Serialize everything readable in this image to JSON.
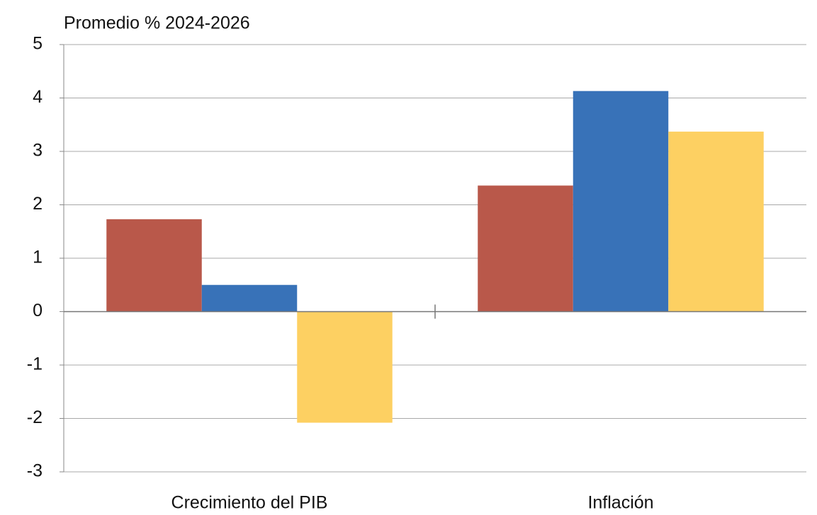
{
  "chart_data": {
    "type": "bar",
    "title": "Promedio % 2024-2026",
    "categories": [
      "Crecimiento del PIB",
      "Inflación"
    ],
    "series": [
      {
        "color": "#b9584a",
        "values": [
          1.73,
          2.36
        ]
      },
      {
        "color": "#3872b8",
        "values": [
          0.5,
          4.13
        ]
      },
      {
        "color": "#fdd062",
        "values": [
          -2.08,
          3.37
        ]
      }
    ],
    "ylim": [
      -3,
      5
    ],
    "yticks": [
      -3,
      -2,
      -1,
      0,
      1,
      2,
      3,
      4,
      5
    ],
    "grid": true
  }
}
